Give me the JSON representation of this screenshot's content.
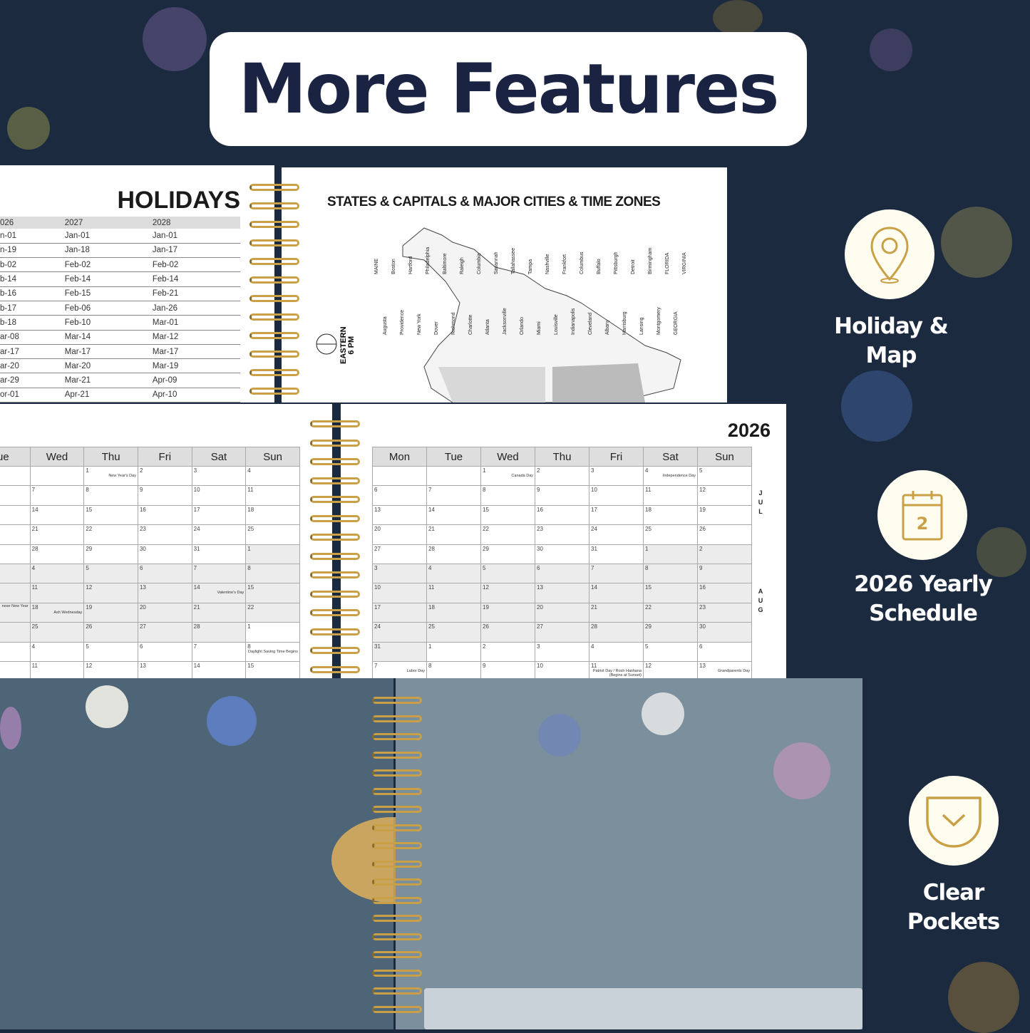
{
  "banner": {
    "title": "More Features"
  },
  "holidays": {
    "title": "HOLIDAYS",
    "headers": [
      "026",
      "2027",
      "2028"
    ],
    "rows": [
      [
        "n-01",
        "Jan-01",
        "Jan-01"
      ],
      [
        "n-19",
        "Jan-18",
        "Jan-17"
      ],
      [
        "b-02",
        "Feb-02",
        "Feb-02"
      ],
      [
        "b-14",
        "Feb-14",
        "Feb-14"
      ],
      [
        "b-16",
        "Feb-15",
        "Feb-21"
      ],
      [
        "b-17",
        "Feb-06",
        "Jan-26"
      ],
      [
        "b-18",
        "Feb-10",
        "Mar-01"
      ],
      [
        "ar-08",
        "Mar-14",
        "Mar-12"
      ],
      [
        "ar-17",
        "Mar-17",
        "Mar-17"
      ],
      [
        "ar-20",
        "Mar-20",
        "Mar-19"
      ],
      [
        "ar-29",
        "Mar-21",
        "Apr-09"
      ],
      [
        "or-01",
        "Apr-21",
        "Apr-10"
      ]
    ]
  },
  "map_page": {
    "title": "STATES & CAPITALS & MAJOR CITIES & TIME ZONES",
    "time_zone": "EASTERN\n6 PM",
    "labels": [
      "MAINE",
      "Augusta",
      "Boston",
      "Providence",
      "Hartford",
      "New York",
      "Philadelphia",
      "Dover",
      "Baltimore",
      "Richmond",
      "Raleigh",
      "Charlotte",
      "Columbia",
      "Atlanta",
      "Savannah",
      "Jacksonville",
      "Tallahassee",
      "Orlando",
      "Tampa",
      "Miami",
      "Nashville",
      "Louisville",
      "Frankfort",
      "Indianapolis",
      "Columbus",
      "Cleveland",
      "Buffalo",
      "Albany",
      "Pittsburgh",
      "Harrisburg",
      "Detroit",
      "Lansing",
      "Birmingham",
      "Montgomery",
      "FLORIDA",
      "GEORGIA",
      "VIRGINIA"
    ]
  },
  "calendar_left": {
    "headers": [
      "ue",
      "Wed",
      "Thu",
      "Fri",
      "Sat",
      "Sun"
    ],
    "rows": [
      [
        {
          "d": ""
        },
        {
          "d": ""
        },
        {
          "d": "1",
          "note": "New Year's Day"
        },
        {
          "d": "2"
        },
        {
          "d": "3"
        },
        {
          "d": "4"
        }
      ],
      [
        {
          "d": ""
        },
        {
          "d": "7"
        },
        {
          "d": "8"
        },
        {
          "d": "9"
        },
        {
          "d": "10"
        },
        {
          "d": "11"
        }
      ],
      [
        {
          "d": ""
        },
        {
          "d": "14"
        },
        {
          "d": "15"
        },
        {
          "d": "16"
        },
        {
          "d": "17"
        },
        {
          "d": "18"
        }
      ],
      [
        {
          "d": ""
        },
        {
          "d": "21"
        },
        {
          "d": "22"
        },
        {
          "d": "23"
        },
        {
          "d": "24"
        },
        {
          "d": "25"
        }
      ],
      [
        {
          "d": ""
        },
        {
          "d": "28"
        },
        {
          "d": "29"
        },
        {
          "d": "30"
        },
        {
          "d": "31"
        },
        {
          "d": "1",
          "shaded": true
        }
      ],
      [
        {
          "d": "",
          "shaded": true
        },
        {
          "d": "4",
          "shaded": true
        },
        {
          "d": "5",
          "shaded": true
        },
        {
          "d": "6",
          "shaded": true
        },
        {
          "d": "7",
          "shaded": true
        },
        {
          "d": "8",
          "shaded": true
        }
      ],
      [
        {
          "d": "",
          "shaded": true
        },
        {
          "d": "11",
          "shaded": true
        },
        {
          "d": "12",
          "shaded": true
        },
        {
          "d": "13",
          "shaded": true
        },
        {
          "d": "14",
          "note": "Valentine's Day",
          "shaded": true
        },
        {
          "d": "15",
          "shaded": true
        }
      ],
      [
        {
          "d": "",
          "note": "nese New Year",
          "shaded": true
        },
        {
          "d": "18",
          "note": "Ash Wednesday",
          "shaded": true
        },
        {
          "d": "19",
          "shaded": true
        },
        {
          "d": "20",
          "shaded": true
        },
        {
          "d": "21",
          "shaded": true
        },
        {
          "d": "22",
          "shaded": true
        }
      ],
      [
        {
          "d": "",
          "shaded": true
        },
        {
          "d": "25",
          "shaded": true
        },
        {
          "d": "26",
          "shaded": true
        },
        {
          "d": "27",
          "shaded": true
        },
        {
          "d": "28",
          "shaded": true
        },
        {
          "d": "1"
        }
      ],
      [
        {
          "d": ""
        },
        {
          "d": "4"
        },
        {
          "d": "5"
        },
        {
          "d": "6"
        },
        {
          "d": "7"
        },
        {
          "d": "8",
          "note": "Daylight Saving Time Begins"
        }
      ],
      [
        {
          "d": ""
        },
        {
          "d": "11"
        },
        {
          "d": "12"
        },
        {
          "d": "13"
        },
        {
          "d": "14"
        },
        {
          "d": "15"
        }
      ]
    ]
  },
  "calendar_right": {
    "year": "2026",
    "headers": [
      "Mon",
      "Tue",
      "Wed",
      "Thu",
      "Fri",
      "Sat",
      "Sun"
    ],
    "months": [
      "JUL",
      "AUG"
    ],
    "rows": [
      [
        {
          "d": ""
        },
        {
          "d": ""
        },
        {
          "d": "1",
          "note": "Canada Day"
        },
        {
          "d": "2"
        },
        {
          "d": "3"
        },
        {
          "d": "4",
          "note": "Independence Day"
        },
        {
          "d": "5"
        }
      ],
      [
        {
          "d": "6"
        },
        {
          "d": "7"
        },
        {
          "d": "8"
        },
        {
          "d": "9"
        },
        {
          "d": "10"
        },
        {
          "d": "11"
        },
        {
          "d": "12"
        }
      ],
      [
        {
          "d": "13"
        },
        {
          "d": "14"
        },
        {
          "d": "15"
        },
        {
          "d": "16"
        },
        {
          "d": "17"
        },
        {
          "d": "18"
        },
        {
          "d": "19"
        }
      ],
      [
        {
          "d": "20"
        },
        {
          "d": "21"
        },
        {
          "d": "22"
        },
        {
          "d": "23"
        },
        {
          "d": "24"
        },
        {
          "d": "25"
        },
        {
          "d": "26"
        }
      ],
      [
        {
          "d": "27"
        },
        {
          "d": "28"
        },
        {
          "d": "29"
        },
        {
          "d": "30"
        },
        {
          "d": "31"
        },
        {
          "d": "1",
          "shaded": true
        },
        {
          "d": "2",
          "shaded": true
        }
      ],
      [
        {
          "d": "3",
          "shaded": true
        },
        {
          "d": "4",
          "shaded": true
        },
        {
          "d": "5",
          "shaded": true
        },
        {
          "d": "6",
          "shaded": true
        },
        {
          "d": "7",
          "shaded": true
        },
        {
          "d": "8",
          "shaded": true
        },
        {
          "d": "9",
          "shaded": true
        }
      ],
      [
        {
          "d": "10",
          "shaded": true
        },
        {
          "d": "11",
          "shaded": true
        },
        {
          "d": "12",
          "shaded": true
        },
        {
          "d": "13",
          "shaded": true
        },
        {
          "d": "14",
          "shaded": true
        },
        {
          "d": "15",
          "shaded": true
        },
        {
          "d": "16",
          "shaded": true
        }
      ],
      [
        {
          "d": "17",
          "shaded": true
        },
        {
          "d": "18",
          "shaded": true
        },
        {
          "d": "19",
          "shaded": true
        },
        {
          "d": "20",
          "shaded": true
        },
        {
          "d": "21",
          "shaded": true
        },
        {
          "d": "22",
          "shaded": true
        },
        {
          "d": "23",
          "shaded": true
        }
      ],
      [
        {
          "d": "24",
          "shaded": true
        },
        {
          "d": "25",
          "shaded": true
        },
        {
          "d": "26",
          "shaded": true
        },
        {
          "d": "27",
          "shaded": true
        },
        {
          "d": "28",
          "shaded": true
        },
        {
          "d": "29",
          "shaded": true
        },
        {
          "d": "30",
          "shaded": true
        }
      ],
      [
        {
          "d": "31",
          "shaded": true
        },
        {
          "d": "1"
        },
        {
          "d": "2"
        },
        {
          "d": "3"
        },
        {
          "d": "4"
        },
        {
          "d": "5"
        },
        {
          "d": "6"
        }
      ],
      [
        {
          "d": "7",
          "note": "Labor Day"
        },
        {
          "d": "8"
        },
        {
          "d": "9"
        },
        {
          "d": "10"
        },
        {
          "d": "11",
          "note": "Patriot Day / Rosh Hashana (Begins at Sunset)"
        },
        {
          "d": "12"
        },
        {
          "d": "13",
          "note": "Grandparents Day"
        }
      ]
    ]
  },
  "features": [
    {
      "label": "Holiday & Map",
      "icon": "map-pin-icon"
    },
    {
      "label": "2026 Yearly\nSchedule",
      "icon": "calendar-icon",
      "icon_text": "2"
    },
    {
      "label": "Clear\nPockets",
      "icon": "pocket-icon"
    }
  ],
  "colors": {
    "background": "#1b2a3f",
    "title": "#1a2442",
    "gold": "#c9a045",
    "cover": "#4d6577",
    "icon_bg": "#fffdf0"
  }
}
